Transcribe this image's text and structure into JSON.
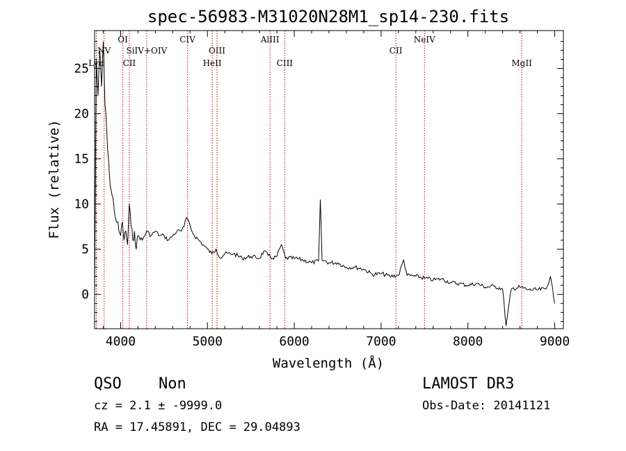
{
  "chart_data": {
    "type": "line",
    "title": "spec-56983-M31020N28M1_sp14-230.fits",
    "xlabel": "Wavelength (Å)",
    "ylabel": "Flux (relative)",
    "xlim": [
      3700,
      9100
    ],
    "ylim": [
      -3.8,
      29.2
    ],
    "xticks": [
      4000,
      5000,
      6000,
      7000,
      8000,
      9000
    ],
    "yticks": [
      0,
      5,
      10,
      15,
      20,
      25
    ],
    "grid": false,
    "line_color": "#000000",
    "marker_color": "#cc0000",
    "lines": [
      {
        "name": "Lyα",
        "label": "Lyα",
        "x": 3720,
        "tier": 3
      },
      {
        "name": "NV",
        "label": "NV",
        "x": 3810,
        "tier": 2
      },
      {
        "name": "OI",
        "label": "OI",
        "x": 4025,
        "tier": 1
      },
      {
        "name": "CII",
        "label": "CII",
        "x": 4100,
        "tier": 3
      },
      {
        "name": "SiIV+OIV",
        "label": "SiIV+OIV",
        "x": 4300,
        "tier": 2
      },
      {
        "name": "CIV",
        "label": "CIV",
        "x": 4770,
        "tier": 1
      },
      {
        "name": "HeII",
        "label": "HeII",
        "x": 5055,
        "tier": 3
      },
      {
        "name": "OIII",
        "label": "OIII",
        "x": 5110,
        "tier": 2
      },
      {
        "name": "AlIII",
        "label": "AlIII",
        "x": 5720,
        "tier": 1
      },
      {
        "name": "CIII",
        "label": "CIII",
        "x": 5890,
        "tier": 3
      },
      {
        "name": "CII_2326",
        "label": "CII",
        "x": 7170,
        "tier": 2
      },
      {
        "name": "NeIV",
        "label": "NeIV",
        "x": 7500,
        "tier": 1
      },
      {
        "name": "MgII",
        "label": "MgII",
        "x": 8620,
        "tier": 3
      }
    ],
    "spectrum": {
      "x": [
        3700,
        3720,
        3740,
        3760,
        3780,
        3800,
        3820,
        3840,
        3860,
        3880,
        3900,
        3920,
        3940,
        3960,
        3980,
        4000,
        4020,
        4040,
        4060,
        4080,
        4100,
        4120,
        4140,
        4160,
        4180,
        4200,
        4250,
        4300,
        4350,
        4400,
        4450,
        4500,
        4550,
        4600,
        4650,
        4700,
        4730,
        4760,
        4790,
        4820,
        4850,
        4900,
        4950,
        5000,
        5050,
        5100,
        5150,
        5200,
        5300,
        5400,
        5500,
        5600,
        5650,
        5700,
        5750,
        5800,
        5850,
        5900,
        6000,
        6100,
        6200,
        6280,
        6300,
        6320,
        6400,
        6500,
        6600,
        6700,
        6800,
        6900,
        7000,
        7100,
        7200,
        7260,
        7300,
        7400,
        7500,
        7600,
        7700,
        7800,
        7900,
        8000,
        8100,
        8200,
        8300,
        8400,
        8440,
        8500,
        8600,
        8700,
        8800,
        8900,
        8950,
        9000
      ],
      "y": [
        0,
        26,
        22,
        27,
        23,
        28,
        21,
        18,
        15,
        12,
        11,
        10,
        8.5,
        8,
        7,
        6.5,
        8,
        6,
        7,
        5.5,
        10,
        7.5,
        6,
        7,
        5,
        6.5,
        6,
        7,
        6.5,
        7,
        6.5,
        6.5,
        6,
        6.5,
        7,
        7,
        7.5,
        8.5,
        8,
        7,
        6.5,
        6,
        5.5,
        5,
        4.5,
        5,
        4,
        4.5,
        4.5,
        4,
        4.2,
        4,
        4.8,
        4.3,
        4,
        4.2,
        5.5,
        4,
        4,
        3.8,
        3.5,
        3.7,
        10.5,
        3.8,
        3.5,
        3.5,
        3,
        3,
        2.8,
        2.2,
        2.3,
        2,
        2.1,
        3.8,
        2.1,
        2,
        1.8,
        1.6,
        1.7,
        1.3,
        1.2,
        1,
        1.2,
        0.8,
        0.9,
        0.6,
        -3.5,
        0.6,
        0.8,
        0.5,
        0.5,
        0.6,
        2,
        -1
      ]
    }
  },
  "footer": {
    "class_label": "QSO",
    "subclass_label": "Non",
    "redshift_text": "cz = 2.1 ± -9999.0",
    "coords_text": "RA =  17.45891, DEC =  29.04893",
    "survey": "LAMOST DR3",
    "obs_date": "Obs-Date: 20141121"
  }
}
